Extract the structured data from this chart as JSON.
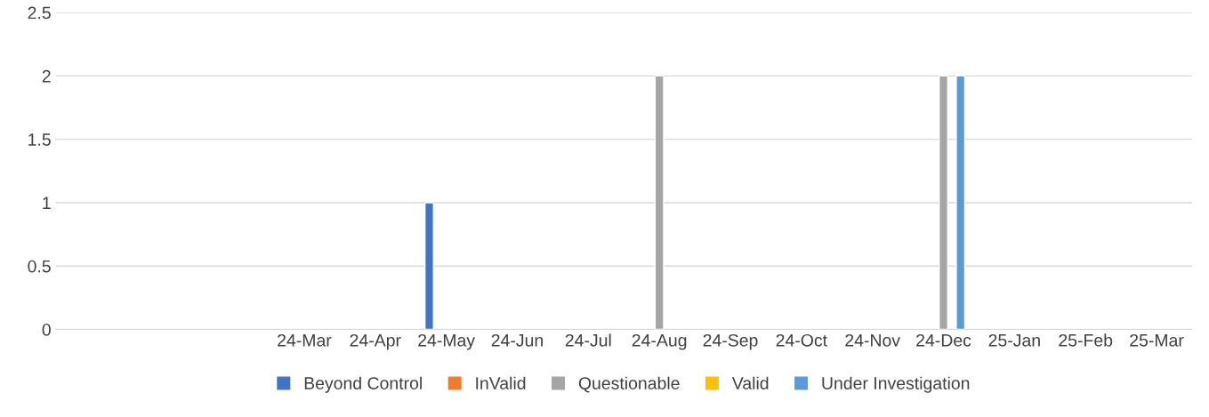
{
  "chart_data": {
    "type": "bar",
    "categories": [
      null,
      null,
      null,
      "24-Mar",
      "24-Apr",
      "24-May",
      "24-Jun",
      "24-Jul",
      "24-Aug",
      "24-Sep",
      "24-Oct",
      "24-Nov",
      "24-Dec",
      "25-Jan",
      "25-Feb",
      "25-Mar"
    ],
    "series": [
      {
        "name": "Beyond Control",
        "color": "#4472c4",
        "values": [
          null,
          null,
          null,
          null,
          null,
          1,
          null,
          null,
          null,
          null,
          null,
          null,
          null,
          null,
          null,
          null
        ]
      },
      {
        "name": "InValid",
        "color": "#ed7d31",
        "values": [
          null,
          null,
          null,
          null,
          null,
          null,
          null,
          null,
          null,
          null,
          null,
          null,
          null,
          null,
          null,
          null
        ]
      },
      {
        "name": "Questionable",
        "color": "#a5a5a5",
        "values": [
          null,
          null,
          null,
          null,
          null,
          null,
          null,
          null,
          2,
          null,
          null,
          null,
          2,
          null,
          null,
          null
        ]
      },
      {
        "name": "Valid",
        "color": "#ffc000",
        "values": [
          null,
          null,
          null,
          null,
          null,
          null,
          null,
          null,
          null,
          null,
          null,
          null,
          null,
          null,
          null,
          null
        ]
      },
      {
        "name": "Under Investigation",
        "color": "#5b9bd5",
        "values": [
          null,
          null,
          null,
          null,
          null,
          null,
          null,
          null,
          null,
          null,
          null,
          null,
          2,
          null,
          null,
          null
        ]
      }
    ],
    "ylim": [
      0,
      2.5
    ],
    "yticks": [
      0,
      0.5,
      1,
      1.5,
      2,
      2.5
    ],
    "grid": "y",
    "legend": "bottom"
  }
}
